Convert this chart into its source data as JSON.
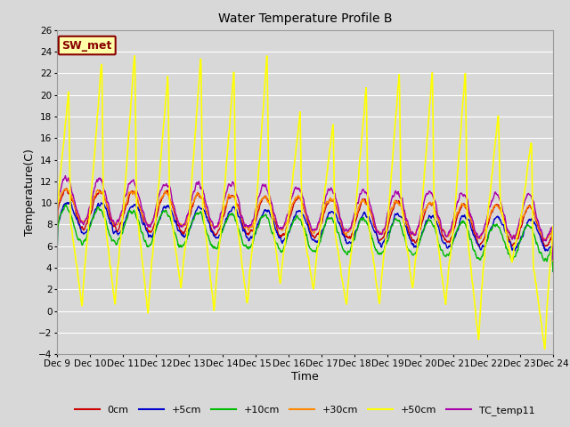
{
  "title": "Water Temperature Profile B",
  "xlabel": "Time",
  "ylabel": "Temperature(C)",
  "ylim": [
    -4,
    26
  ],
  "yticks": [
    -4,
    -2,
    0,
    2,
    4,
    6,
    8,
    10,
    12,
    14,
    16,
    18,
    20,
    22,
    24,
    26
  ],
  "xtick_labels": [
    "Dec 9",
    "Dec 10",
    "Dec 11",
    "Dec 12",
    "Dec 13",
    "Dec 14",
    "Dec 15",
    "Dec 16",
    "Dec 17",
    "Dec 18",
    "Dec 19",
    "Dec 20",
    "Dec 21",
    "Dec 22",
    "Dec 23",
    "Dec 24"
  ],
  "series_colors": {
    "0cm": "#cc0000",
    "+5cm": "#0000cc",
    "+10cm": "#00bb00",
    "+30cm": "#ff8800",
    "+50cm": "#ffff00",
    "TC_temp11": "#aa00aa"
  },
  "bg_color": "#d8d8d8",
  "plot_bg_color": "#d8d8d8",
  "grid_color": "#ffffff",
  "annotation_box": {
    "text": "SW_met",
    "facecolor": "#ffffaa",
    "edgecolor": "#880000",
    "textcolor": "#880000",
    "fontsize": 9,
    "fontweight": "bold"
  }
}
